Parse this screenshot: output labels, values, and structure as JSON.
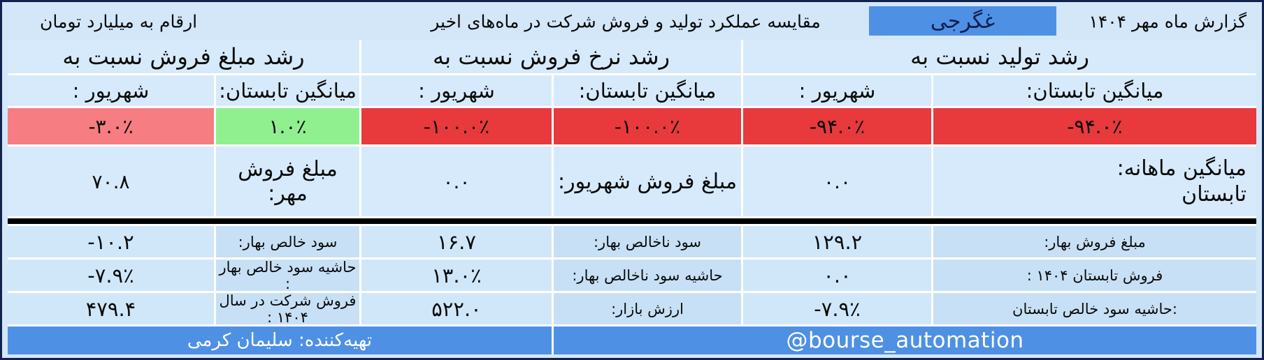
{
  "title_bar": {
    "report_title": "گزارش ماه مهر ۱۴۰۴",
    "ticker": "غگرجی",
    "main_title": "مقایسه عملکرد تولید و فروش شرکت در ماه‌های اخیر",
    "unit_note": "ارقام به میلیارد تومان"
  },
  "colors": {
    "accent_blue": "#4e90e4",
    "negative_red": "#e8393d",
    "mild_negative_red": "#f67d81",
    "positive_green": "#90f08f",
    "cell_blue": "#d7eafb",
    "border_navy": "#11224d"
  },
  "growth_sections": [
    {
      "title": "رشد تولید نسبت به",
      "columns": [
        {
          "header": "میانگین تابستان:",
          "value": "-۹۴.۰٪",
          "tone": "red"
        },
        {
          "header": "شهریور :",
          "value": "-۹۴.۰٪",
          "tone": "red"
        }
      ]
    },
    {
      "title": "رشد نرخ فروش نسبت به",
      "columns": [
        {
          "header": "میانگین تابستان:",
          "value": "-۱۰۰.۰٪",
          "tone": "red"
        },
        {
          "header": "شهریور :",
          "value": "-۱۰۰.۰٪",
          "tone": "red"
        }
      ]
    },
    {
      "title": "رشد مبلغ فروش نسبت به",
      "columns": [
        {
          "header": "میانگین تابستان:",
          "value": "۱.۰٪",
          "tone": "green"
        },
        {
          "header": "شهریور :",
          "value": "-۳.۰٪",
          "tone": "salmon"
        }
      ]
    }
  ],
  "monthly_row": {
    "label_line1": "میانگین ماهانه:",
    "label_line2": "تابستان",
    "summer_avg_value": "۰.۰",
    "shahrivar_label": "مبلغ فروش شهریور:",
    "shahrivar_value": "۰.۰",
    "mehr_label": "مبلغ فروش مهر:",
    "mehr_value": "۷۰.۸"
  },
  "detail_rows": [
    {
      "cells": [
        {
          "label": "مبلغ فروش بهار:",
          "value": "۱۲۹.۲"
        },
        {
          "label": "سود ناخالص بهار:",
          "value": "۱۶.۷"
        },
        {
          "label": "سود خالص بهار:",
          "value": "-۱۰.۲"
        }
      ]
    },
    {
      "cells": [
        {
          "label": "فروش تابستان ۱۴۰۴ :",
          "value": "۰.۰"
        },
        {
          "label": "حاشیه سود ناخالص بهار:",
          "value": "۱۳.۰٪"
        },
        {
          "label": "حاشیه سود خالص بهار :",
          "value": "-۷.۹٪"
        }
      ]
    },
    {
      "cells": [
        {
          "label": ":حاشیه سود خالص تابستان",
          "value": "-۷.۹٪"
        },
        {
          "label": "ارزش بازار:",
          "value": "۵۲۲.۰"
        },
        {
          "label": "فروش شرکت در سال ۱۴۰۴ :",
          "value": "۴۷۹.۴"
        }
      ]
    }
  ],
  "footer": {
    "channel": "@bourse_automation",
    "credit": "تهیه‌کننده: سلیمان کرمی"
  }
}
